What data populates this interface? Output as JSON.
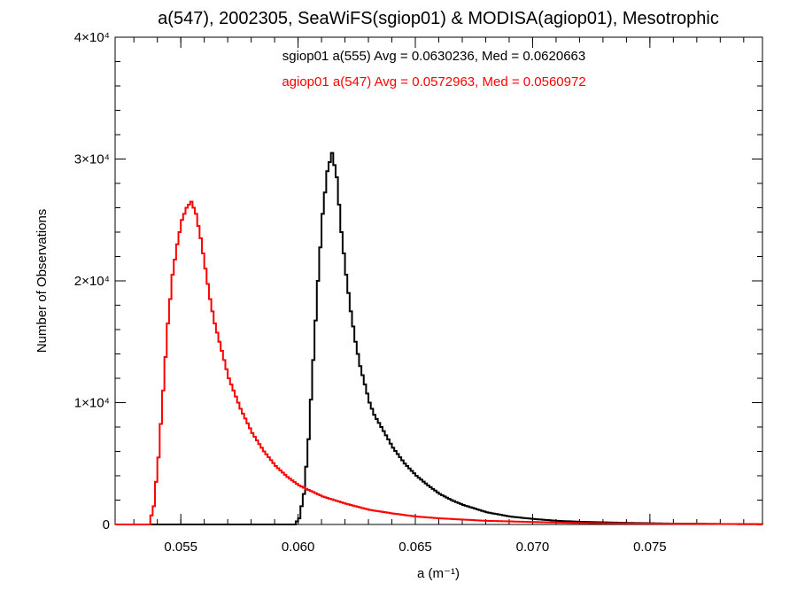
{
  "chart_data": {
    "type": "line",
    "title": "a(547), 2002305, SeaWiFS(sgiop01) & MODISA(agiop01), Mesotrophic",
    "xlabel": "a (m⁻¹)",
    "ylabel": "Number of Observations",
    "xlim": [
      0.0522,
      0.0798
    ],
    "ylim": [
      0,
      40000
    ],
    "x_ticks": [
      0.055,
      0.06,
      0.065,
      0.07,
      0.075
    ],
    "x_tick_labels": [
      "0.055",
      "0.060",
      "0.065",
      "0.070",
      "0.075"
    ],
    "y_ticks": [
      0,
      10000,
      20000,
      30000,
      40000
    ],
    "y_tick_labels": [
      "0",
      "1×10⁴",
      "2×10⁴",
      "3×10⁴",
      "4×10⁴"
    ],
    "grid": false,
    "legend_position": "top-center",
    "series": [
      {
        "legend_text": "sgiop01 a(555) Avg = 0.0630236, Med = 0.0620663",
        "color": "#000000",
        "x": [
          0.0522,
          0.0598,
          0.06,
          0.0602,
          0.0604,
          0.0606,
          0.0608,
          0.061,
          0.0612,
          0.0614,
          0.0616,
          0.0618,
          0.062,
          0.0622,
          0.0624,
          0.0626,
          0.0628,
          0.063,
          0.0632,
          0.0635,
          0.064,
          0.0645,
          0.065,
          0.0655,
          0.066,
          0.0665,
          0.067,
          0.068,
          0.069,
          0.07,
          0.071,
          0.072,
          0.074,
          0.076,
          0.078,
          0.0798
        ],
        "y": [
          0,
          0,
          500,
          2500,
          7000,
          13500,
          20000,
          25500,
          29000,
          30500,
          28500,
          24000,
          20500,
          17500,
          15000,
          13000,
          11500,
          10000,
          9000,
          8000,
          6300,
          5000,
          4000,
          3200,
          2500,
          2000,
          1600,
          1000,
          650,
          450,
          300,
          220,
          130,
          70,
          40,
          20
        ]
      },
      {
        "legend_text": "agiop01 a(547) Avg = 0.0572963, Med = 0.0560972",
        "color": "#ff0000",
        "x": [
          0.0522,
          0.0536,
          0.0538,
          0.054,
          0.0542,
          0.0544,
          0.0546,
          0.0548,
          0.055,
          0.0552,
          0.0554,
          0.0556,
          0.0558,
          0.056,
          0.0562,
          0.0564,
          0.0566,
          0.0568,
          0.057,
          0.0575,
          0.058,
          0.0585,
          0.059,
          0.0595,
          0.06,
          0.061,
          0.062,
          0.063,
          0.064,
          0.065,
          0.066,
          0.068,
          0.07,
          0.072,
          0.075,
          0.0798
        ],
        "y": [
          0,
          0,
          1500,
          5500,
          11000,
          16500,
          20500,
          23000,
          25000,
          26000,
          26500,
          25500,
          23500,
          21000,
          18500,
          16500,
          15000,
          13500,
          12000,
          9500,
          7500,
          6000,
          4800,
          3900,
          3200,
          2300,
          1700,
          1200,
          900,
          650,
          500,
          300,
          200,
          120,
          70,
          20
        ]
      }
    ]
  }
}
